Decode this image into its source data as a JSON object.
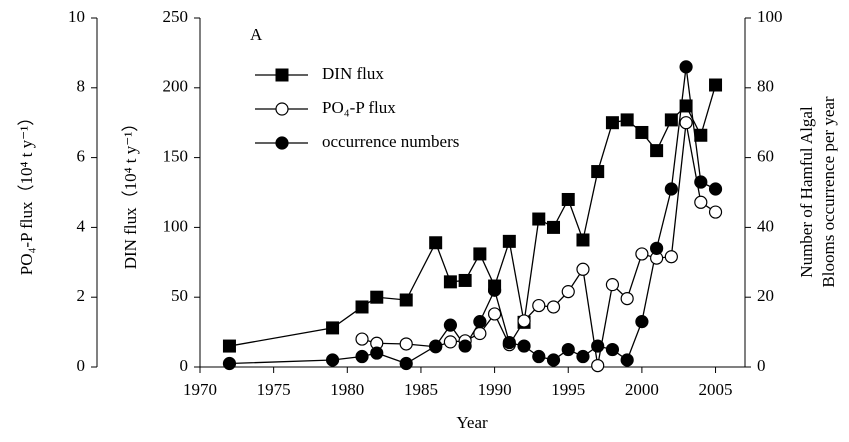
{
  "chart_data": {
    "type": "line",
    "panel_label": "A",
    "xlabel": "Year",
    "ylabel": "DIN flux（10⁴ t y⁻¹）",
    "y3label": "PO₄-P flux（10⁴ t y⁻¹）",
    "y2label": [
      "Number of Hamful Algal",
      "Blooms occurrence per year"
    ],
    "x": [
      1972,
      1979,
      1981,
      1982,
      1984,
      1986,
      1987,
      1988,
      1989,
      1990,
      1991,
      1992,
      1993,
      1994,
      1995,
      1996,
      1997,
      1998,
      1999,
      2000,
      2001,
      2002,
      2003,
      2004,
      2005
    ],
    "series": [
      {
        "name": "DIN flux",
        "color": "#000000",
        "marker": "square",
        "fill": "#000000",
        "axis": "y",
        "values": [
          15,
          28,
          43,
          50,
          48,
          89,
          61,
          62,
          81,
          58,
          90,
          32,
          106,
          100,
          120,
          91,
          140,
          175,
          177,
          168,
          155,
          177,
          187,
          166,
          202
        ]
      },
      {
        "name": "PO₄-P flux",
        "color": "#000000",
        "marker": "circle",
        "fill": "#ffffff",
        "axis": "y3",
        "values": [
          null,
          null,
          0.8,
          0.68,
          0.66,
          0.58,
          0.72,
          0.75,
          0.96,
          1.52,
          0.64,
          1.32,
          1.76,
          1.72,
          2.16,
          2.8,
          0.04,
          2.36,
          1.96,
          3.24,
          3.12,
          3.16,
          7.0,
          4.72,
          4.44
        ]
      },
      {
        "name": "occurrence numbers",
        "color": "#000000",
        "marker": "circle",
        "fill": "#000000",
        "axis": "y2",
        "values": [
          1,
          2,
          3,
          4,
          1,
          6,
          12,
          6,
          13,
          22,
          7,
          6,
          3,
          2,
          5,
          3,
          6,
          5,
          2,
          13,
          34,
          51,
          86,
          53,
          51
        ]
      }
    ],
    "xlim": [
      1970,
      2007
    ],
    "xticks": [
      1970,
      1975,
      1980,
      1985,
      1990,
      1995,
      2000,
      2005
    ],
    "ylim": [
      0,
      250
    ],
    "yticks": [
      0,
      50,
      100,
      150,
      200,
      250
    ],
    "y2lim": [
      0,
      100
    ],
    "y2ticks": [
      0,
      20,
      40,
      60,
      80,
      100
    ],
    "y3lim": [
      0,
      10
    ],
    "y3ticks": [
      0,
      2,
      4,
      6,
      8,
      10
    ],
    "legend": "upper left"
  }
}
